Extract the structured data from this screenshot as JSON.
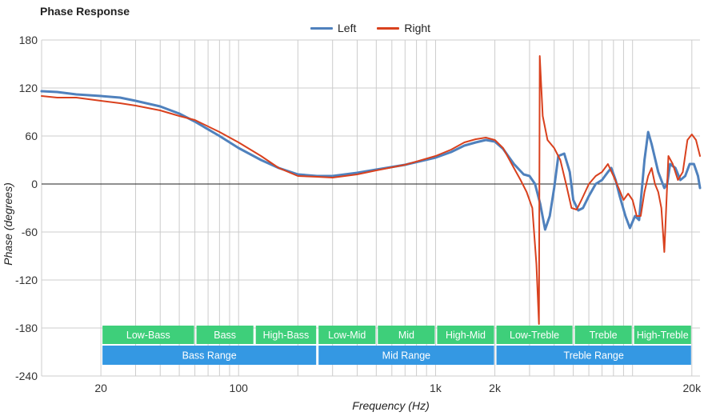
{
  "chart_data": {
    "type": "line",
    "title": "Phase Response",
    "xlabel": "Frequency (Hz)",
    "ylabel": "Phase (degrees)",
    "x_scale": "log",
    "xlim": [
      10,
      22000
    ],
    "ylim": [
      -240,
      180
    ],
    "y_ticks": [
      180,
      120,
      60,
      0,
      -60,
      -120,
      -180,
      -240
    ],
    "x_ticks": [
      {
        "value": 20,
        "label": "20"
      },
      {
        "value": 100,
        "label": "100"
      },
      {
        "value": 1000,
        "label": "1k"
      },
      {
        "value": 2000,
        "label": "2k"
      },
      {
        "value": 20000,
        "label": "20k"
      }
    ],
    "legend_position": "top-center",
    "series": [
      {
        "name": "Left",
        "color": "#4f81bd",
        "points": [
          [
            10,
            116
          ],
          [
            12,
            115
          ],
          [
            15,
            112
          ],
          [
            20,
            110
          ],
          [
            25,
            108
          ],
          [
            30,
            104
          ],
          [
            40,
            97
          ],
          [
            50,
            88
          ],
          [
            60,
            78
          ],
          [
            80,
            60
          ],
          [
            100,
            45
          ],
          [
            130,
            30
          ],
          [
            160,
            20
          ],
          [
            200,
            12
          ],
          [
            250,
            10
          ],
          [
            300,
            10
          ],
          [
            400,
            14
          ],
          [
            500,
            18
          ],
          [
            700,
            24
          ],
          [
            1000,
            33
          ],
          [
            1200,
            40
          ],
          [
            1400,
            48
          ],
          [
            1600,
            52
          ],
          [
            1800,
            55
          ],
          [
            2000,
            53
          ],
          [
            2200,
            44
          ],
          [
            2500,
            25
          ],
          [
            2800,
            12
          ],
          [
            3000,
            10
          ],
          [
            3200,
            0
          ],
          [
            3400,
            -25
          ],
          [
            3600,
            -57
          ],
          [
            3800,
            -40
          ],
          [
            4000,
            -5
          ],
          [
            4200,
            35
          ],
          [
            4500,
            38
          ],
          [
            4800,
            15
          ],
          [
            5000,
            -20
          ],
          [
            5300,
            -33
          ],
          [
            5600,
            -30
          ],
          [
            6000,
            -15
          ],
          [
            6500,
            0
          ],
          [
            7000,
            5
          ],
          [
            7500,
            15
          ],
          [
            7800,
            20
          ],
          [
            8200,
            5
          ],
          [
            8600,
            -15
          ],
          [
            9200,
            -40
          ],
          [
            9700,
            -55
          ],
          [
            10300,
            -40
          ],
          [
            10800,
            -45
          ],
          [
            11500,
            30
          ],
          [
            12000,
            65
          ],
          [
            12500,
            50
          ],
          [
            13500,
            15
          ],
          [
            14500,
            -5
          ],
          [
            15000,
            0
          ],
          [
            15500,
            25
          ],
          [
            16500,
            20
          ],
          [
            17500,
            5
          ],
          [
            18500,
            10
          ],
          [
            19500,
            25
          ],
          [
            20500,
            25
          ],
          [
            21500,
            10
          ],
          [
            22000,
            -5
          ]
        ]
      },
      {
        "name": "Right",
        "color": "#d9411e",
        "points": [
          [
            10,
            110
          ],
          [
            12,
            108
          ],
          [
            15,
            108
          ],
          [
            20,
            104
          ],
          [
            25,
            101
          ],
          [
            30,
            98
          ],
          [
            40,
            92
          ],
          [
            50,
            85
          ],
          [
            60,
            80
          ],
          [
            80,
            65
          ],
          [
            100,
            52
          ],
          [
            130,
            35
          ],
          [
            160,
            20
          ],
          [
            200,
            10
          ],
          [
            250,
            9
          ],
          [
            300,
            8
          ],
          [
            400,
            12
          ],
          [
            500,
            17
          ],
          [
            700,
            24
          ],
          [
            1000,
            35
          ],
          [
            1200,
            43
          ],
          [
            1400,
            52
          ],
          [
            1600,
            56
          ],
          [
            1800,
            58
          ],
          [
            2000,
            55
          ],
          [
            2200,
            45
          ],
          [
            2500,
            20
          ],
          [
            2700,
            5
          ],
          [
            2900,
            -10
          ],
          [
            3100,
            -30
          ],
          [
            3250,
            -100
          ],
          [
            3350,
            -175
          ],
          [
            3380,
            160
          ],
          [
            3500,
            85
          ],
          [
            3700,
            55
          ],
          [
            4000,
            45
          ],
          [
            4300,
            30
          ],
          [
            4600,
            0
          ],
          [
            4900,
            -30
          ],
          [
            5200,
            -32
          ],
          [
            5500,
            -20
          ],
          [
            6000,
            0
          ],
          [
            6500,
            10
          ],
          [
            7000,
            15
          ],
          [
            7500,
            25
          ],
          [
            8000,
            10
          ],
          [
            8500,
            -5
          ],
          [
            9000,
            -20
          ],
          [
            9500,
            -12
          ],
          [
            10000,
            -20
          ],
          [
            10500,
            -40
          ],
          [
            11000,
            -40
          ],
          [
            11500,
            -10
          ],
          [
            12000,
            10
          ],
          [
            12500,
            20
          ],
          [
            13000,
            0
          ],
          [
            13500,
            -10
          ],
          [
            14000,
            -30
          ],
          [
            14500,
            -85
          ],
          [
            15200,
            35
          ],
          [
            16000,
            25
          ],
          [
            17000,
            5
          ],
          [
            18000,
            15
          ],
          [
            19000,
            55
          ],
          [
            20000,
            62
          ],
          [
            21000,
            55
          ],
          [
            22000,
            35
          ]
        ]
      }
    ],
    "range_bands": [
      {
        "label": "Low-Bass",
        "from": 20,
        "to": 60,
        "color": "#3ecf7a",
        "row": 1
      },
      {
        "label": "Bass",
        "from": 60,
        "to": 120,
        "color": "#3ecf7a",
        "row": 1
      },
      {
        "label": "High-Bass",
        "from": 120,
        "to": 250,
        "color": "#3ecf7a",
        "row": 1
      },
      {
        "label": "Low-Mid",
        "from": 250,
        "to": 500,
        "color": "#3ecf7a",
        "row": 1
      },
      {
        "label": "Mid",
        "from": 500,
        "to": 1000,
        "color": "#3ecf7a",
        "row": 1
      },
      {
        "label": "High-Mid",
        "from": 1000,
        "to": 2000,
        "color": "#3ecf7a",
        "row": 1
      },
      {
        "label": "Low-Treble",
        "from": 2000,
        "to": 5000,
        "color": "#3ecf7a",
        "row": 1
      },
      {
        "label": "Treble",
        "from": 5000,
        "to": 10000,
        "color": "#3ecf7a",
        "row": 1
      },
      {
        "label": "High-Treble",
        "from": 10000,
        "to": 20000,
        "color": "#3ecf7a",
        "row": 1
      },
      {
        "label": "Bass Range",
        "from": 20,
        "to": 250,
        "color": "#3498e3",
        "row": 2
      },
      {
        "label": "Mid Range",
        "from": 250,
        "to": 2000,
        "color": "#3498e3",
        "row": 2
      },
      {
        "label": "Treble Range",
        "from": 2000,
        "to": 20000,
        "color": "#3498e3",
        "row": 2
      }
    ]
  }
}
